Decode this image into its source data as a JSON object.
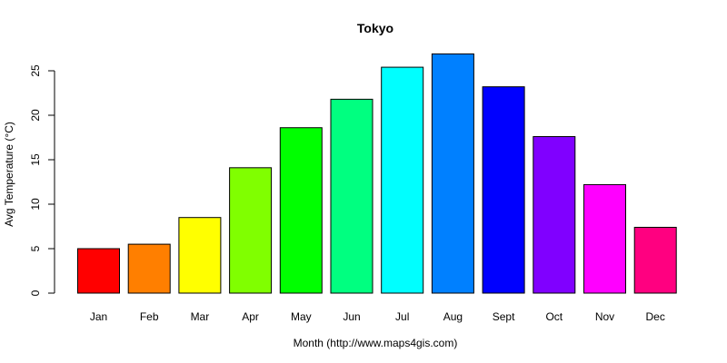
{
  "chart_data": {
    "type": "bar",
    "title": "Tokyo",
    "xlabel": "Month (http://www.maps4gis.com)",
    "ylabel": "Avg Temperature (°C)",
    "ylim": [
      0,
      25
    ],
    "yticks": [
      0,
      5,
      10,
      15,
      20,
      25
    ],
    "categories": [
      "Jan",
      "Feb",
      "Mar",
      "Apr",
      "May",
      "Jun",
      "Jul",
      "Aug",
      "Sept",
      "Oct",
      "Nov",
      "Dec"
    ],
    "values": [
      5.0,
      5.5,
      8.5,
      14.1,
      18.6,
      21.8,
      25.4,
      26.9,
      23.2,
      17.6,
      12.2,
      7.4
    ],
    "colors": [
      "#FF0000",
      "#FF7F00",
      "#FFFF00",
      "#80FF00",
      "#00FF00",
      "#00FF80",
      "#00FFFF",
      "#0080FF",
      "#0000FF",
      "#8000FF",
      "#FF00FF",
      "#FF0080"
    ],
    "grid": false,
    "legend": "none"
  }
}
